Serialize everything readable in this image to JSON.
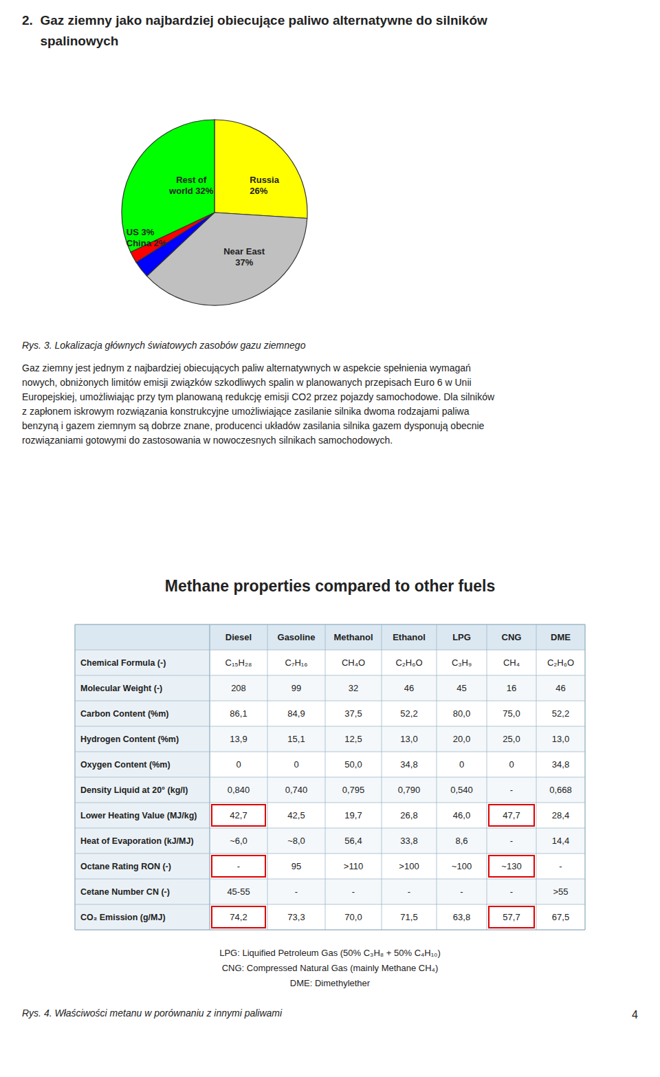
{
  "page": {
    "heading": [
      "2.  Gaz ziemny jako najbardziej obiecujące paliwo alternatywne do silników",
      "     spalinowych"
    ],
    "paragraph": [
      "Gaz ziemny jest jednym z najbardziej obiecujących paliw alternatywnych w aspekcie spełnienia wymagań",
      "nowych, obniżonych limitów emisji związków szkodliwych spalin w planowanych przepisach Euro 6 w Unii",
      "Europejskiej, umożliwiając przy tym planowaną redukcję emisji CO2 przez pojazdy samochodowe. Dla silników",
      "z zapłonem iskrowym rozwiązania konstrukcyjne umożliwiające zasilanie silnika dwoma rodzajami paliwa",
      "benzyną i gazem ziemnym są dobrze znane, producenci układów zasilania silnika gazem dysponują obecnie",
      "rozwiązaniami gotowymi do zastosowania w nowoczesnych silnikach samochodowych."
    ],
    "page_number": "4"
  },
  "chart_data": [
    {
      "type": "pie",
      "values": [
        26,
        37,
        3,
        2,
        32
      ],
      "colors": [
        "#FFFF00",
        "#C0C0C0",
        "#0000FF",
        "#FF0000",
        "#00FF00"
      ],
      "annotations": [
        "Russia\n26%",
        "Near East\n37%",
        "US 3%\nChina 2%",
        "Rest of\nworld 32%"
      ],
      "caption": "Rys. 3.  Lokalizacja głównych światowych zasobów gazu ziemnego"
    },
    {
      "type": "table",
      "title": "Methane properties compared to other fuels",
      "columns": [
        "Diesel",
        "Gasoline",
        "Methanol",
        "Ethanol",
        "LPG",
        "CNG",
        "DME"
      ],
      "rows": [
        "Chemical Formula (-)",
        "Molecular Weight (-)",
        "Carbon Content (%m)",
        "Hydrogen Content (%m)",
        "Oxygen Content (%m)",
        "Density Liquid at 20° (kg/l)",
        "Lower Heating Value (MJ/kg)",
        "Heat of Evaporation (kJ/MJ)",
        "Octane Rating RON (-)",
        "Cetane Number CN (-)",
        "CO₂ Emission (g/MJ)"
      ],
      "cells": [
        [
          "C₁₅H₂₈",
          "C₇H₁₆",
          "CH₄O",
          "C₂H₆O",
          "C₃H₉",
          "CH₄",
          "C₂H₆O"
        ],
        [
          "208",
          "99",
          "32",
          "46",
          "45",
          "16",
          "46"
        ],
        [
          "86,1",
          "84,9",
          "37,5",
          "52,2",
          "80,0",
          "75,0",
          "52,2"
        ],
        [
          "13,9",
          "15,1",
          "12,5",
          "13,0",
          "20,0",
          "25,0",
          "13,0"
        ],
        [
          "0",
          "0",
          "50,0",
          "34,8",
          "0",
          "0",
          "34,8"
        ],
        [
          "0,840",
          "0,740",
          "0,795",
          "0,790",
          "0,540",
          "-",
          "0,668"
        ],
        [
          "42,7",
          "42,5",
          "19,7",
          "26,8",
          "46,0",
          "47,7",
          "28,4"
        ],
        [
          "~6,0",
          "~8,0",
          "56,4",
          "33,8",
          "8,6",
          "-",
          "14,4"
        ],
        [
          "-",
          "95",
          ">110",
          ">100",
          "~100",
          "~130",
          "-"
        ],
        [
          "45-55",
          "-",
          "-",
          "-",
          "-",
          "-",
          ">55"
        ],
        [
          "74,2",
          "73,3",
          "70,0",
          "71,5",
          "63,8",
          "57,7",
          "67,5"
        ]
      ],
      "highlighted": [
        [
          6,
          0
        ],
        [
          6,
          5
        ],
        [
          8,
          0
        ],
        [
          8,
          5
        ],
        [
          10,
          0
        ],
        [
          10,
          5
        ]
      ],
      "footnotes": [
        "LPG: Liquified Petroleum Gas (50% C₃H₈ + 50% C₄H₁₀)",
        "CNG: Compressed Natural Gas (mainly Methane CH₄)",
        "DME: Dimethylether"
      ],
      "caption": "Rys. 4.   Właściwości metanu w porównaniu z innymi paliwami"
    }
  ]
}
